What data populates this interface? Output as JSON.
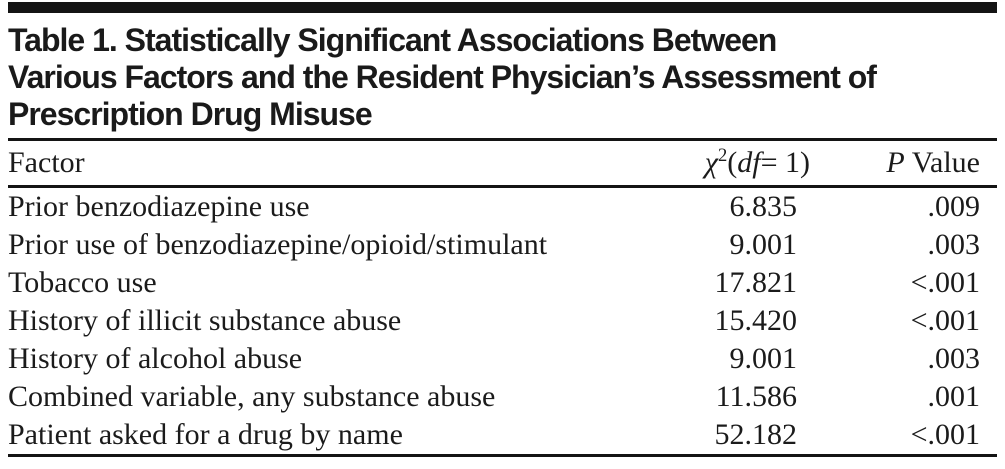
{
  "table": {
    "title_lines": {
      "line1": "Table 1. Statistically Significant Associations Between",
      "line2": "Various Factors and the Resident Physician’s Assessment of",
      "line3": "Prescription Drug Misuse"
    },
    "header": {
      "factor": "Factor",
      "chi": {
        "symbol": "χ",
        "sup": "2",
        "open": "(",
        "df": "df",
        "rest": "= 1)"
      },
      "p": {
        "italic": "P",
        "rest": " Value"
      }
    },
    "rows": [
      {
        "factor": "Prior benzodiazepine use",
        "chi": "6.835",
        "p": ".009"
      },
      {
        "factor": "Prior use of benzodiazepine/opioid/stimulant",
        "chi": "9.001",
        "p": ".003"
      },
      {
        "factor": "Tobacco use",
        "chi": "17.821",
        "p": "<.001"
      },
      {
        "factor": "History of illicit substance abuse",
        "chi": "15.420",
        "p": "<.001"
      },
      {
        "factor": "History of alcohol abuse",
        "chi": "9.001",
        "p": ".003"
      },
      {
        "factor": "Combined variable, any substance abuse",
        "chi": "11.586",
        "p": ".001"
      },
      {
        "factor": "Patient asked for a drug by name",
        "chi": "52.182",
        "p": "<.001"
      }
    ]
  },
  "colors": {
    "text": "#1b1b1b",
    "rule": "#141414",
    "background": "#ffffff"
  },
  "chart_data": {
    "type": "table",
    "title": "Table 1. Statistically Significant Associations Between Various Factors and the Resident Physician’s Assessment of Prescription Drug Misuse",
    "columns": [
      "Factor",
      "χ2(df=1)",
      "P Value"
    ],
    "rows": [
      [
        "Prior benzodiazepine use",
        "6.835",
        ".009"
      ],
      [
        "Prior use of benzodiazepine/opioid/stimulant",
        "9.001",
        ".003"
      ],
      [
        "Tobacco use",
        "17.821",
        "<.001"
      ],
      [
        "History of illicit substance abuse",
        "15.420",
        "<.001"
      ],
      [
        "History of alcohol abuse",
        "9.001",
        ".003"
      ],
      [
        "Combined variable, any substance abuse",
        "11.586",
        ".001"
      ],
      [
        "Patient asked for a drug by name",
        "52.182",
        "<.001"
      ]
    ]
  }
}
